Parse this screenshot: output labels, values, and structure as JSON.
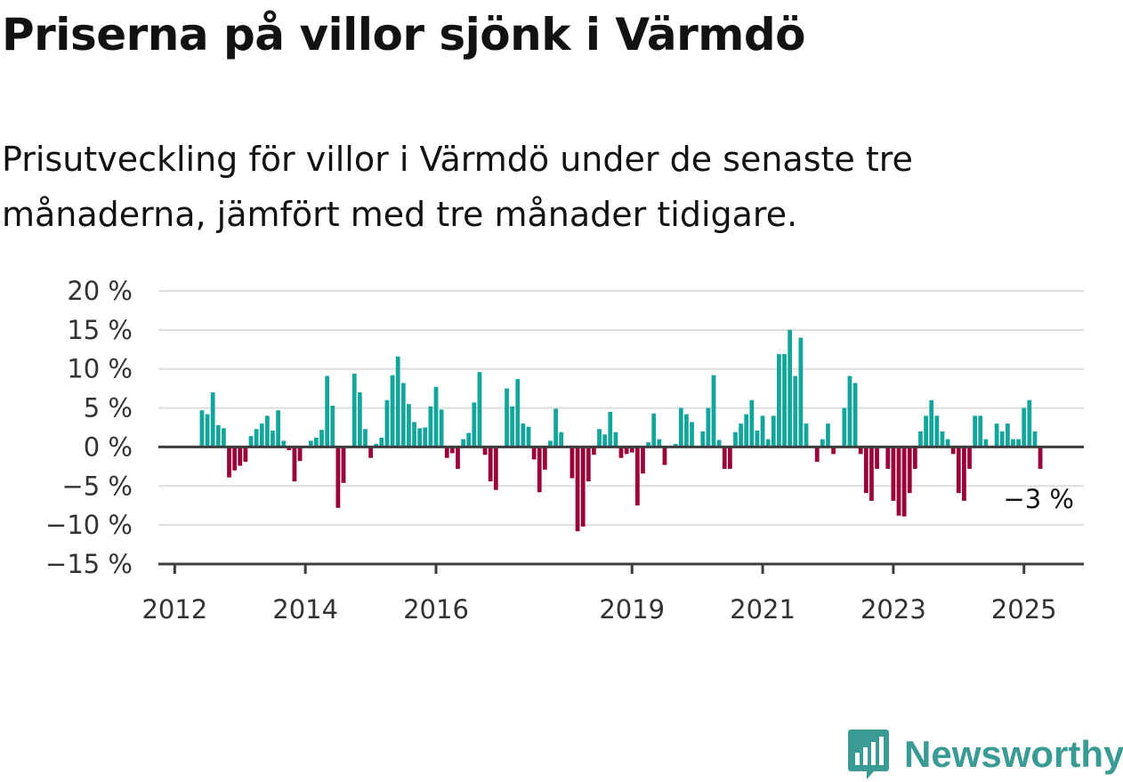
{
  "header": {
    "title": "Priserna på villor sjönk i Värmdö",
    "subtitle": "Prisutveckling för villor i Värmdö under de senaste tre månaderna, jämfört med tre månader tidigare."
  },
  "branding": {
    "name": "Newsworthy",
    "icon": "newsworthy-logo-icon",
    "color": "#3a9a94"
  },
  "chart_data": {
    "type": "bar",
    "start": "2012-06",
    "frequency": "monthly",
    "xlim": [
      "2011-10",
      "2025-12"
    ],
    "ylim": [
      -15,
      20
    ],
    "yticks": [
      20,
      15,
      10,
      5,
      0,
      -5,
      -10,
      -15
    ],
    "ytick_labels": [
      "20 %",
      "15 %",
      "10 %",
      "5 %",
      "0 %",
      "−5 %",
      "−10 %",
      "−15 %"
    ],
    "xticks": [
      "2012-01",
      "2014-01",
      "2016-01",
      "2019-01",
      "2021-01",
      "2023-01",
      "2025-01"
    ],
    "xtick_labels": [
      "2012",
      "2014",
      "2016",
      "2019",
      "2021",
      "2023",
      "2025"
    ],
    "grid": true,
    "colors": {
      "positive": "#13a59c",
      "negative": "#99003a",
      "zero_line": "#3d3d3d",
      "grid": "#dddddd"
    },
    "values": [
      4.7,
      4.2,
      7.0,
      2.8,
      2.4,
      -3.9,
      -3.0,
      -2.4,
      -1.9,
      1.4,
      2.3,
      3.0,
      4.0,
      2.1,
      4.7,
      0.8,
      -0.4,
      -4.4,
      -1.8,
      0,
      0.8,
      1.2,
      2.2,
      9.1,
      5.3,
      -7.8,
      -4.6,
      0,
      9.4,
      7.0,
      2.3,
      -1.4,
      0.4,
      1.2,
      6.0,
      9.2,
      11.6,
      8.2,
      5.5,
      3.2,
      2.4,
      2.5,
      5.2,
      7.7,
      4.8,
      -1.4,
      -0.8,
      -2.8,
      1.0,
      1.8,
      5.7,
      9.6,
      -1.0,
      -4.4,
      -5.5,
      0,
      7.5,
      5.2,
      8.7,
      3.0,
      2.6,
      -1.6,
      -5.8,
      -2.9,
      0.8,
      4.9,
      1.9,
      0,
      -4.0,
      -10.8,
      -10.2,
      -4.4,
      -1.0,
      2.3,
      1.6,
      4.5,
      1.9,
      -1.4,
      -0.9,
      -0.7,
      -7.5,
      -3.4,
      0.6,
      4.3,
      1.0,
      -2.3,
      0,
      0.4,
      5.0,
      4.2,
      3.2,
      0,
      2.0,
      5.0,
      9.2,
      0.9,
      -2.8,
      -2.8,
      1.9,
      3.0,
      4.2,
      6.0,
      2.1,
      4.0,
      1.0,
      4.0,
      11.9,
      11.9,
      15.0,
      9.1,
      14.0,
      3.0,
      0,
      -1.9,
      1.0,
      3.0,
      -0.9,
      0,
      5.0,
      9.1,
      8.2,
      -0.9,
      -5.9,
      -6.9,
      -2.8,
      0,
      -2.8,
      -6.9,
      -8.8,
      -8.9,
      -5.9,
      -2.8,
      2.0,
      4.0,
      6.0,
      4.0,
      2.0,
      1.0,
      -0.9,
      -5.9,
      -6.9,
      -2.8,
      4.0,
      4.0,
      1.0,
      0,
      3.0,
      2.0,
      3.0,
      1.0,
      1.0,
      5.0,
      6.0,
      2.0,
      -2.8
    ],
    "annotation": {
      "label": "−3 %"
    }
  }
}
